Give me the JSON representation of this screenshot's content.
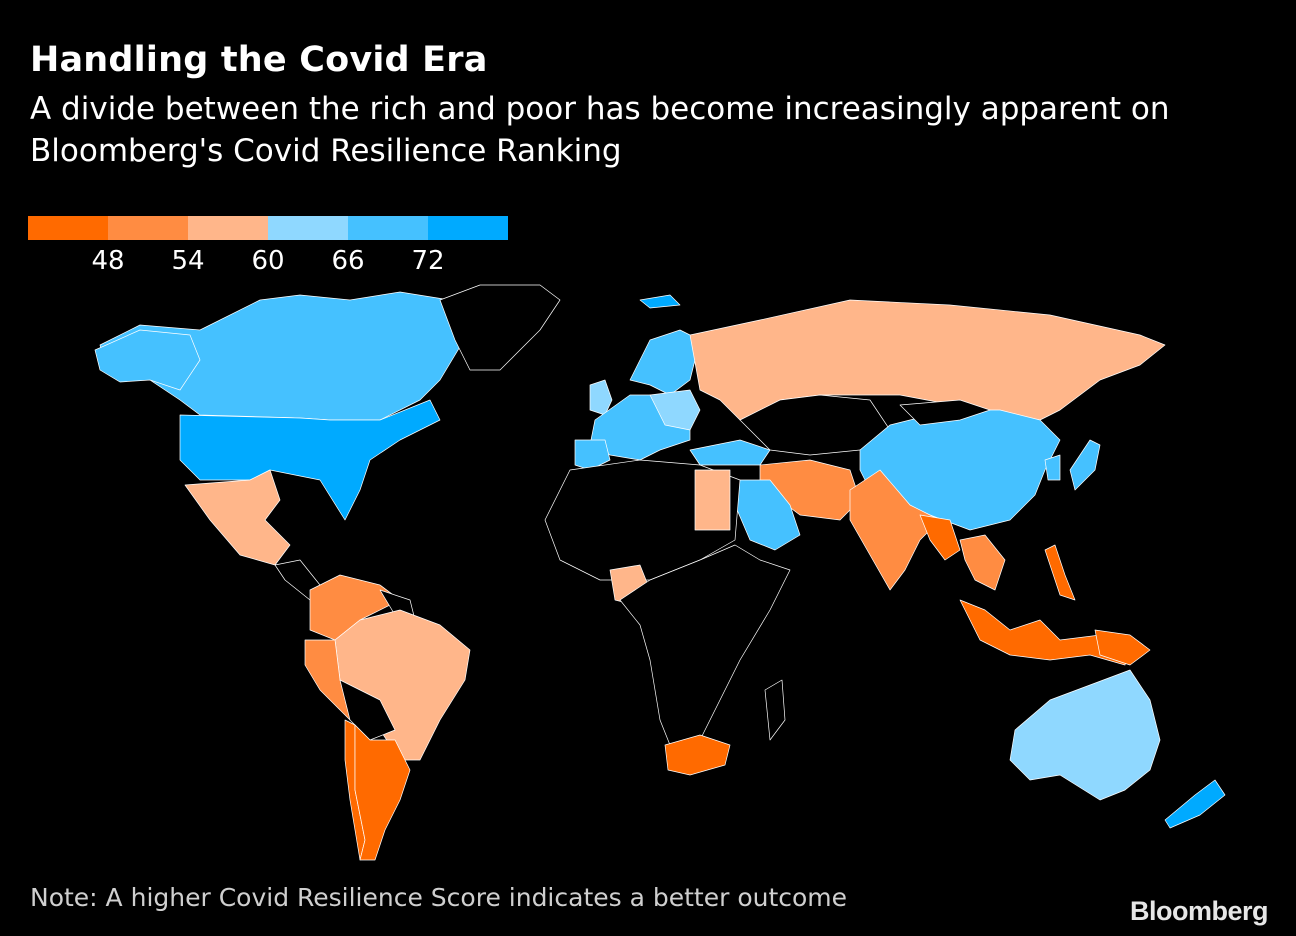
{
  "header": {
    "title": "Handling the Covid Era",
    "subtitle": "A divide between the rich and poor has become increasingly apparent on Bloomberg's Covid Resilience Ranking"
  },
  "legend": {
    "colors": [
      "#ff6a00",
      "#ff8c42",
      "#ffb68a",
      "#8fd8ff",
      "#45c1ff",
      "#00aaff"
    ],
    "ticks": [
      "48",
      "54",
      "60",
      "66",
      "72"
    ]
  },
  "colors": {
    "background": "#000000",
    "no_data": "#000000",
    "border": "#ffffff"
  },
  "footer": {
    "note": "Note: A higher Covid Resilience Score indicates a better outcome",
    "source_brand": "Bloomberg"
  }
}
